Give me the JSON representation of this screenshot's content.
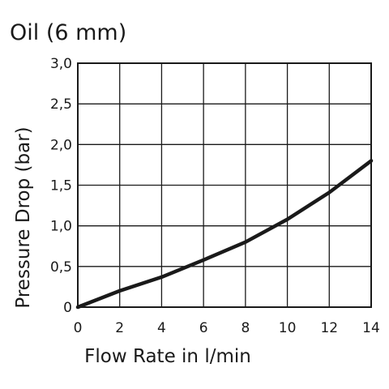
{
  "chart_data": {
    "type": "line",
    "title": "Oil (6 mm)",
    "xlabel": "Flow Rate in l/min",
    "ylabel": "Pressure Drop (bar)",
    "xlim": [
      0,
      14
    ],
    "ylim": [
      0,
      3.0
    ],
    "x_ticks": [
      "0",
      "2",
      "4",
      "6",
      "8",
      "10",
      "12",
      "14"
    ],
    "y_ticks": [
      "0",
      "0,5",
      "1,0",
      "1,5",
      "2,0",
      "2,5",
      "3,0"
    ],
    "grid": true,
    "series": [
      {
        "x": [
          0,
          2,
          4,
          6,
          8,
          10,
          12,
          14
        ],
        "values": [
          0,
          0.2,
          0.37,
          0.58,
          0.8,
          1.08,
          1.41,
          1.8
        ],
        "color": "#1a1a1a"
      }
    ]
  }
}
